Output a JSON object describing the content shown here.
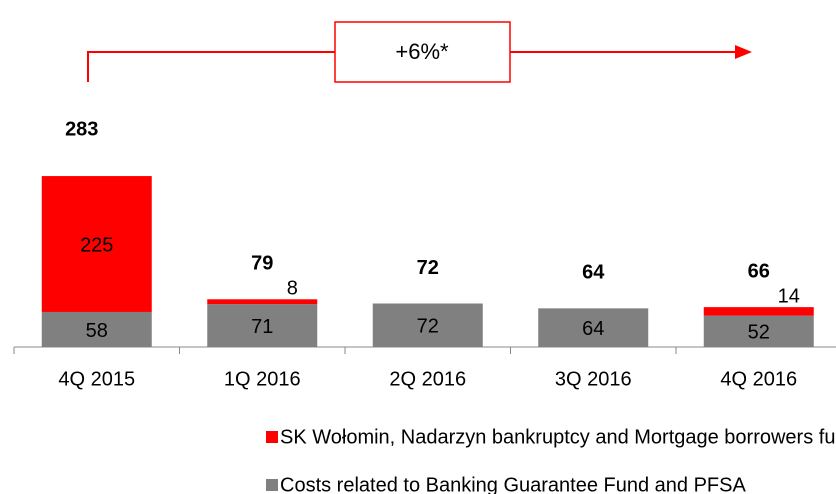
{
  "chart_data": {
    "type": "stacked_bar",
    "annotation": "+6%*",
    "categories": [
      "4Q 2015",
      "1Q 2016",
      "2Q 2016",
      "3Q 2016",
      "4Q 2016"
    ],
    "series": [
      {
        "name": "Costs related to Banking Guarantee Fund and PFSA",
        "color": "#808080",
        "values": [
          58,
          71,
          72,
          64,
          52
        ]
      },
      {
        "name": "SK Wołomin, Nadarzyn bankruptcy and Mortgage borrowers fund",
        "color": "#ff0000",
        "values": [
          225,
          8,
          null,
          null,
          14
        ]
      }
    ],
    "totals": [
      283,
      79,
      72,
      64,
      66
    ]
  }
}
